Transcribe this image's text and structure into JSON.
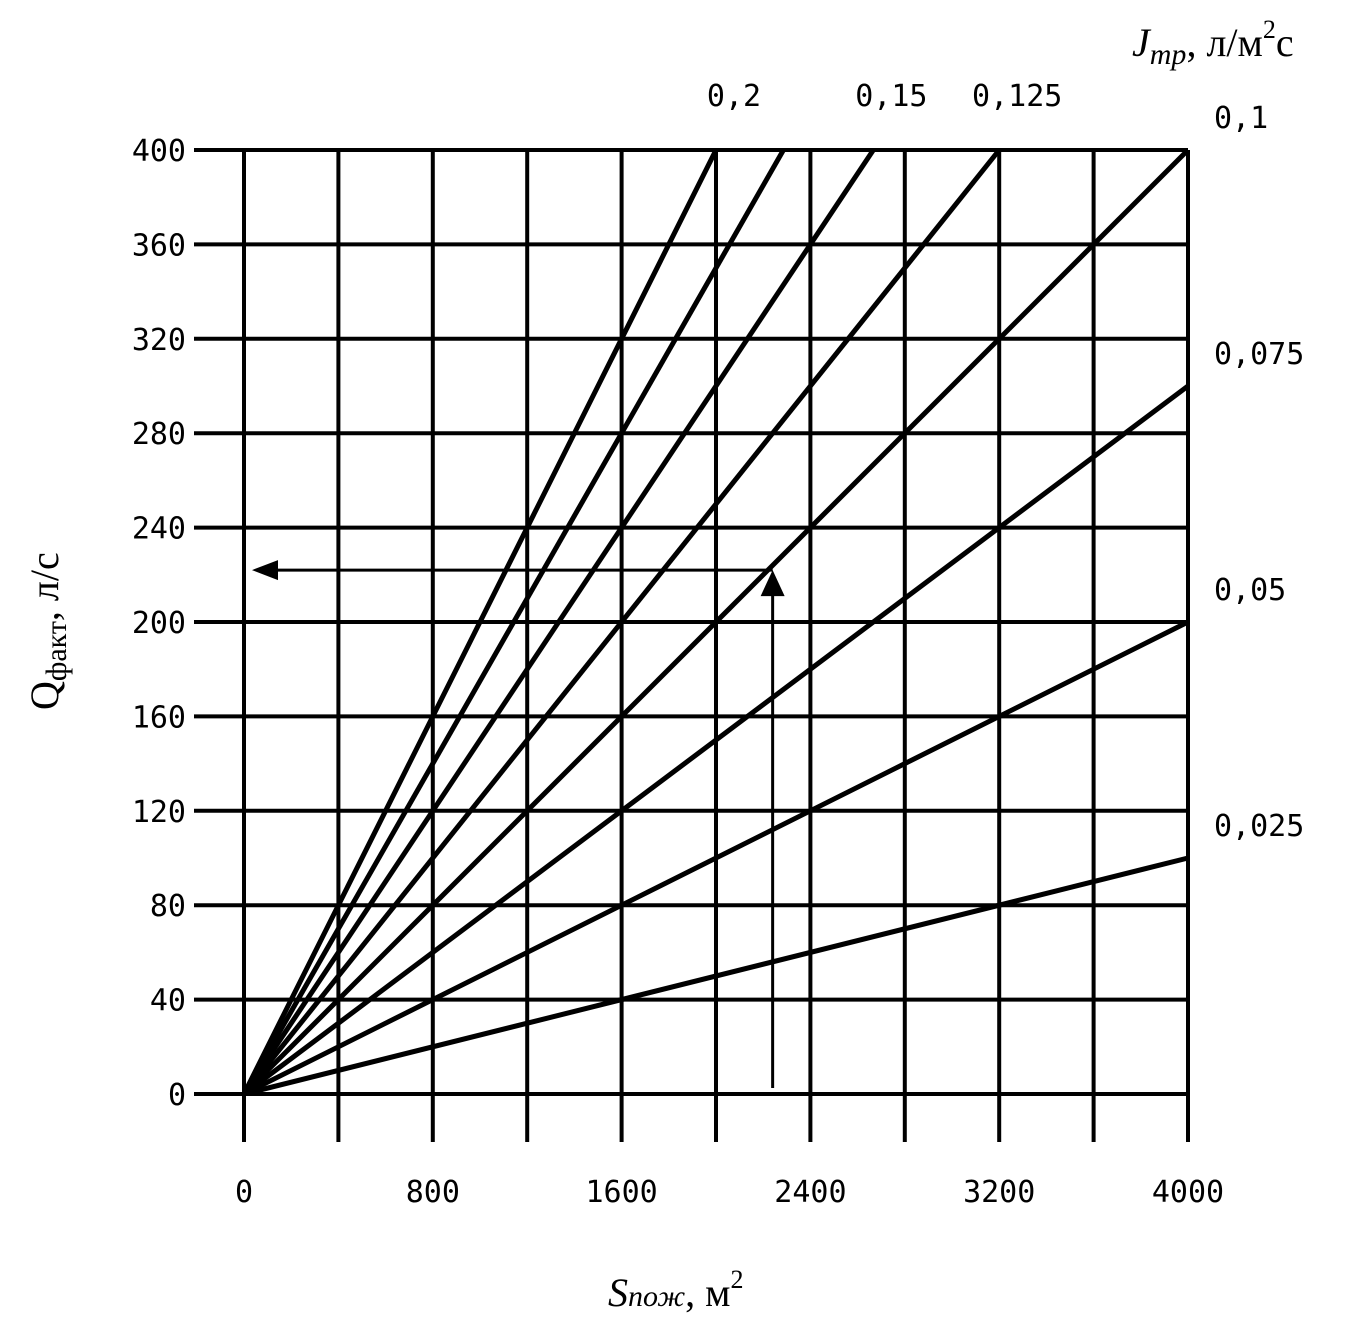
{
  "chart_data": {
    "type": "line",
    "title": "",
    "xlabel": {
      "main": "S",
      "sub": "пож",
      "rest": ", м",
      "sup": "2"
    },
    "ylabel": {
      "main": "Q",
      "sub": "факт",
      "rest": ", л/с"
    },
    "series_label": {
      "main": "J",
      "sub": "тр",
      "rest": ", л/м",
      "sup": "2",
      "tail": "с"
    },
    "xlim": [
      0,
      4000
    ],
    "ylim": [
      0,
      400
    ],
    "x_ticks": [
      0,
      800,
      1600,
      2400,
      3200,
      4000
    ],
    "x_tick_labels": [
      "0",
      "800",
      "1600",
      "2400",
      "3200",
      "4000"
    ],
    "y_ticks": [
      0,
      40,
      80,
      120,
      160,
      200,
      240,
      280,
      320,
      360,
      400
    ],
    "y_tick_labels": [
      "0",
      "40",
      "80",
      "120",
      "160",
      "200",
      "240",
      "280",
      "320",
      "360",
      "400"
    ],
    "grid": true,
    "series": [
      {
        "name": "0,2",
        "slope": 0.2,
        "x": [
          0,
          2000
        ],
        "y": [
          0,
          400
        ]
      },
      {
        "name": "",
        "slope": 0.175,
        "x": [
          0,
          2285.7
        ],
        "y": [
          0,
          400
        ]
      },
      {
        "name": "0,15",
        "slope": 0.15,
        "x": [
          0,
          2666.7
        ],
        "y": [
          0,
          400
        ]
      },
      {
        "name": "0,125",
        "slope": 0.125,
        "x": [
          0,
          3200
        ],
        "y": [
          0,
          400
        ]
      },
      {
        "name": "0,1",
        "slope": 0.1,
        "x": [
          0,
          4000
        ],
        "y": [
          0,
          400
        ]
      },
      {
        "name": "0,075",
        "slope": 0.075,
        "x": [
          0,
          4000
        ],
        "y": [
          0,
          300
        ]
      },
      {
        "name": "0,05",
        "slope": 0.05,
        "x": [
          0,
          4000
        ],
        "y": [
          0,
          200
        ]
      },
      {
        "name": "0,025",
        "slope": 0.025,
        "x": [
          0,
          4000
        ],
        "y": [
          0,
          100
        ]
      }
    ],
    "annotation_path": {
      "x": [
        2240,
        2240,
        0
      ],
      "y": [
        0,
        222,
        222
      ]
    }
  }
}
